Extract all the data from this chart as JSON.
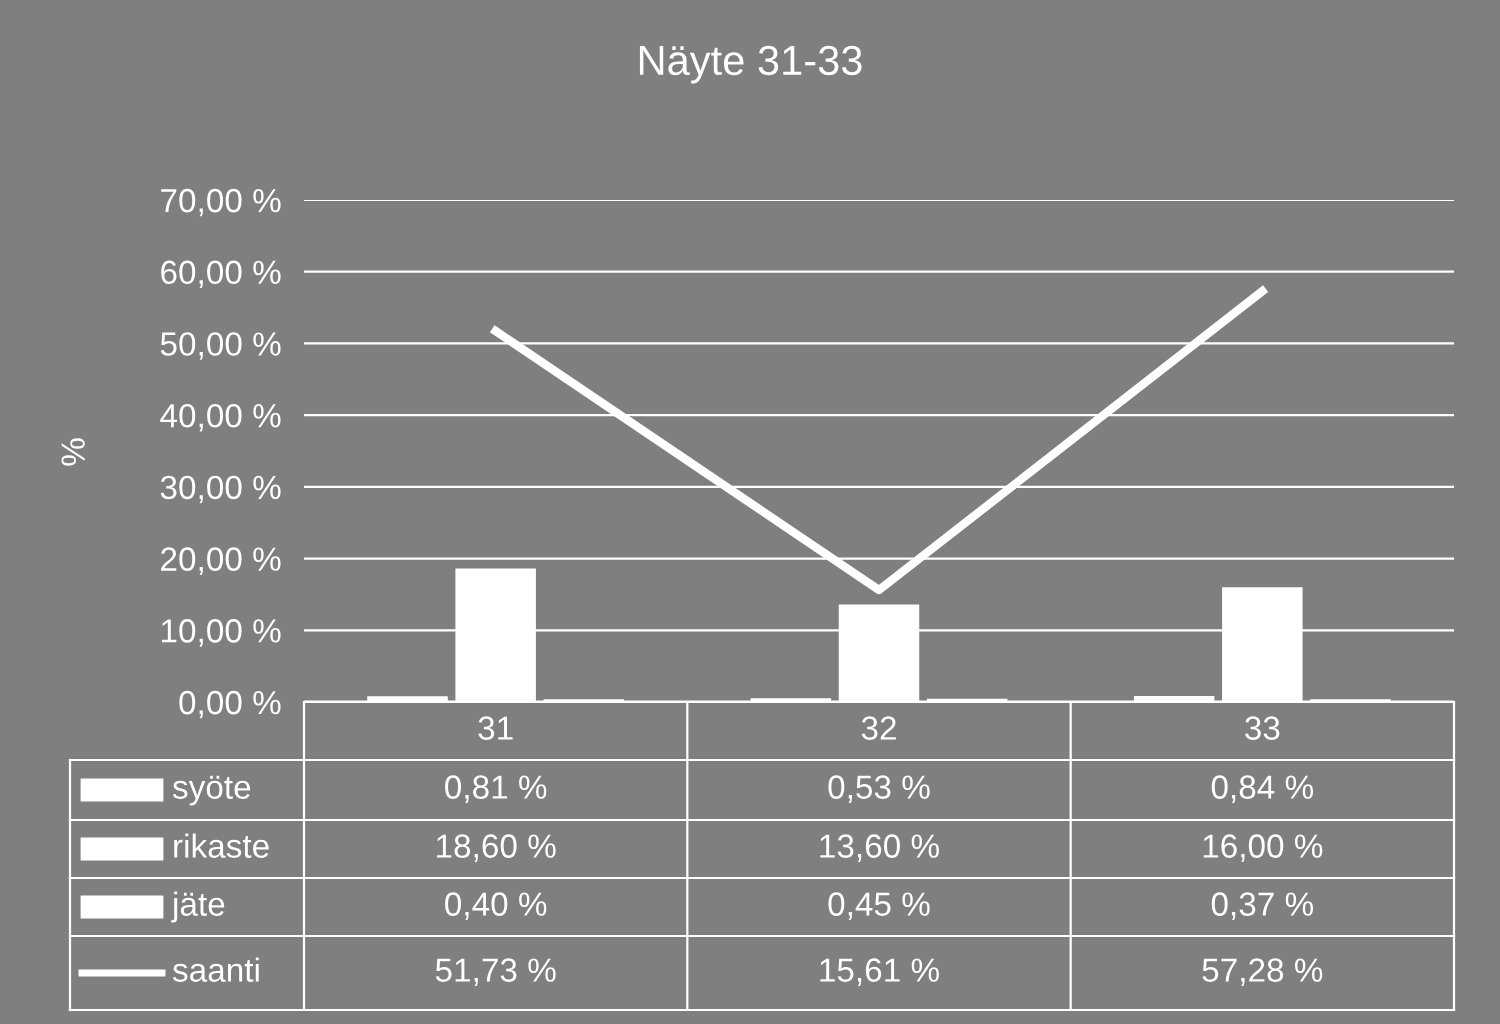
{
  "chart_data": {
    "type": "bar",
    "title": "Näyte 31-33",
    "ylabel": "%",
    "categories": [
      "31",
      "32",
      "33"
    ],
    "series": [
      {
        "name": "syöte",
        "color": "#ffffff",
        "values": [
          0.81,
          0.53,
          0.84
        ],
        "value_labels": [
          "0,81 %",
          "0,53 %",
          "0,84 %"
        ]
      },
      {
        "name": "rikaste",
        "color": "#ffffff",
        "values": [
          18.6,
          13.6,
          16.0
        ],
        "value_labels": [
          "18,60 %",
          "13,60 %",
          "16,00 %"
        ]
      },
      {
        "name": "jäte",
        "color": "#ffffff",
        "values": [
          0.4,
          0.45,
          0.37
        ],
        "value_labels": [
          "0,40 %",
          "0,45 %",
          "0,37 %"
        ]
      },
      {
        "name": "saanti",
        "type": "line",
        "color": "#ffffff",
        "values": [
          51.73,
          15.61,
          57.28
        ],
        "value_labels": [
          "51,73 %",
          "15,61 %",
          "57,28 %"
        ]
      }
    ],
    "ylim": [
      0,
      70
    ],
    "yticks": [
      {
        "value": 0,
        "label": "0,00 %"
      },
      {
        "value": 10,
        "label": "10,00 %"
      },
      {
        "value": 20,
        "label": "20,00 %"
      },
      {
        "value": 30,
        "label": "30,00 %"
      },
      {
        "value": 40,
        "label": "40,00 %"
      },
      {
        "value": 50,
        "label": "50,00 %"
      },
      {
        "value": 60,
        "label": "60,00 %"
      },
      {
        "value": 70,
        "label": "70,00 %"
      }
    ],
    "grid": "y",
    "legend": "bottom",
    "marker": "none",
    "line_style": "solid"
  }
}
